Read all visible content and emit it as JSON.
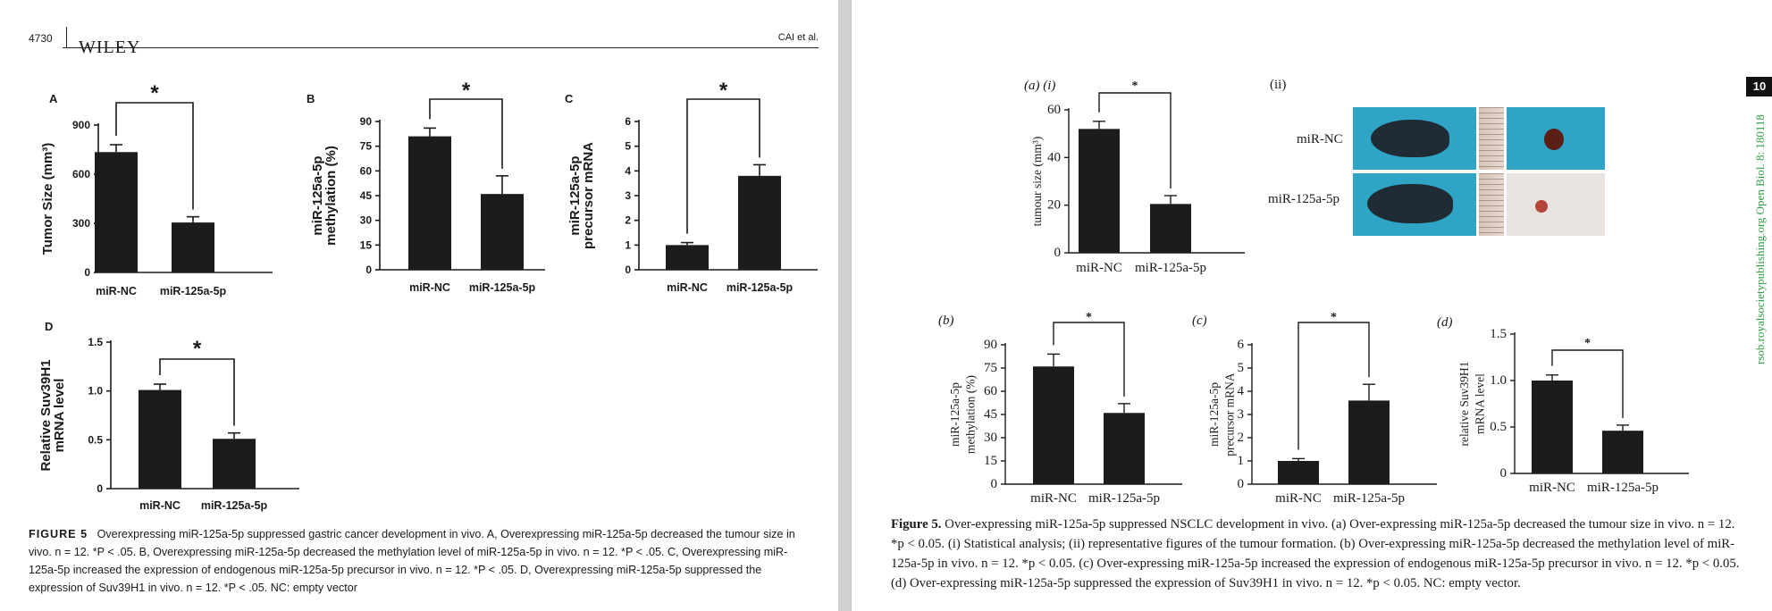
{
  "left_page": {
    "page_number": "4730",
    "journal": "WILEY",
    "running_head": "CAI et al.",
    "figure_label": "FIGURE 5",
    "caption": "Overexpressing miR-125a-5p suppressed gastric cancer development in vivo. A, Overexpressing miR-125a-5p decreased the tumour size in vivo. n = 12. *P < .05. B, Overexpressing miR-125a-5p decreased the methylation level of miR-125a-5p in vivo. n = 12. *P < .05. C, Overexpressing miR-125a-5p increased the expression of endogenous miR-125a-5p precursor in vivo. n = 12. *P < .05. D, Overexpressing miR-125a-5p suppressed the expression of Suv39H1 in vivo. n = 12. *P < .05. NC: empty vector"
  },
  "right_page": {
    "page_tab": "10",
    "side_url": "rsob.royalsocietypublishing.org   Open Biol. 8: 180118",
    "figure_label": "Figure 5.",
    "caption": "Over-expressing miR-125a-5p suppressed NSCLC development in vivo. (a) Over-expressing miR-125a-5p decreased the tumour size in vivo. n = 12. *p < 0.05. (i) Statistical analysis; (ii) representative figures of the tumour formation. (b) Over-expressing miR-125a-5p decreased the methylation level of miR-125a-5p in vivo. n = 12. *p < 0.05. (c) Over-expressing miR-125a-5p increased the expression of endogenous miR-125a-5p precursor in vivo. n = 12. *p < 0.05. (d) Over-expressing miR-125a-5p suppressed the expression of Suv39H1 in vivo. n = 12. *p < 0.05. NC: empty vector.",
    "photo_panel_label": "(ii)",
    "photo_rows": [
      "miR-NC",
      "miR-125a-5p"
    ]
  },
  "chart_data": [
    {
      "id": "L-A",
      "panel": "A",
      "type": "bar",
      "categories": [
        "miR-NC",
        "miR-125a-5p"
      ],
      "values": [
        735,
        305
      ],
      "errors": [
        45,
        35
      ],
      "ylabel": "Tumor Size (mm³)",
      "ylim": [
        0,
        900
      ],
      "ticks": [
        0,
        300,
        600,
        900
      ],
      "significance": "*"
    },
    {
      "id": "L-B",
      "panel": "B",
      "type": "bar",
      "categories": [
        "miR-NC",
        "miR-125a-5p"
      ],
      "values": [
        81,
        46
      ],
      "errors": [
        5,
        11
      ],
      "ylabel": [
        "miR-125a-5p",
        "methylation (%)"
      ],
      "ylim": [
        0,
        90
      ],
      "ticks": [
        0,
        15,
        30,
        45,
        60,
        75,
        90
      ],
      "significance": "*"
    },
    {
      "id": "L-C",
      "panel": "C",
      "type": "bar",
      "categories": [
        "miR-NC",
        "miR-125a-5p"
      ],
      "values": [
        1.0,
        3.8
      ],
      "errors": [
        0.1,
        0.45
      ],
      "ylabel": [
        "miR-125a-5p",
        "precursor mRNA"
      ],
      "ylim": [
        0,
        6
      ],
      "ticks": [
        0,
        1,
        2,
        3,
        4,
        5,
        6
      ],
      "significance": "*"
    },
    {
      "id": "L-D",
      "panel": "D",
      "type": "bar",
      "categories": [
        "miR-NC",
        "miR-125a-5p"
      ],
      "values": [
        1.01,
        0.51
      ],
      "errors": [
        0.06,
        0.06
      ],
      "ylabel": [
        "Relative Suv39H1",
        "mRNA level"
      ],
      "ylim": [
        0,
        1.5
      ],
      "ticks": [
        "0",
        "0.5",
        "1.0",
        "1.5"
      ],
      "significance": "*"
    },
    {
      "id": "R-a",
      "panel": "(a)  (i)",
      "type": "bar",
      "categories": [
        "miR-NC",
        "miR-125a-5p"
      ],
      "values": [
        52,
        20.5
      ],
      "errors": [
        3.2,
        3.5
      ],
      "ylabel": "tumour size (mm³)",
      "ylim": [
        0,
        60
      ],
      "ticks": [
        0,
        20,
        40,
        60
      ],
      "significance": "*"
    },
    {
      "id": "R-b",
      "panel": "(b)",
      "type": "bar",
      "categories": [
        "miR-NC",
        "miR-125a-5p"
      ],
      "values": [
        76,
        46
      ],
      "errors": [
        8,
        6
      ],
      "ylabel": [
        "miR-125a-5p",
        "methylation (%)"
      ],
      "ylim": [
        0,
        90
      ],
      "ticks": [
        0,
        15,
        30,
        45,
        60,
        75,
        90
      ],
      "significance": "*"
    },
    {
      "id": "R-c",
      "panel": "(c)",
      "type": "bar",
      "categories": [
        "miR-NC",
        "miR-125a-5p"
      ],
      "values": [
        1.0,
        3.6
      ],
      "errors": [
        0.1,
        0.7
      ],
      "ylabel": [
        "miR-125a-5p",
        "precursor mRNA"
      ],
      "ylim": [
        0,
        6
      ],
      "ticks": [
        0,
        1,
        2,
        3,
        4,
        5,
        6
      ],
      "significance": "*"
    },
    {
      "id": "R-d",
      "panel": "(d)",
      "type": "bar",
      "categories": [
        "miR-NC",
        "miR-125a-5p"
      ],
      "values": [
        1.0,
        0.46
      ],
      "errors": [
        0.06,
        0.06
      ],
      "ylabel": [
        "relative Suv39H1",
        "mRNA level"
      ],
      "ylim": [
        0,
        1.5
      ],
      "ticks": [
        "0",
        "0.5",
        "1.0",
        "1.5"
      ],
      "significance": "*"
    }
  ]
}
